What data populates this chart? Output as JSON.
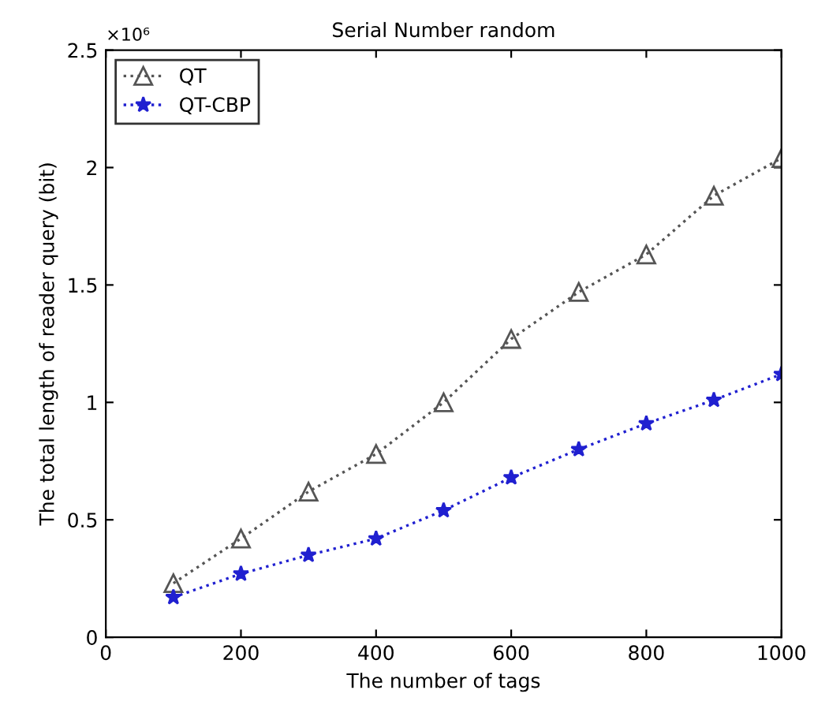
{
  "chart_data": {
    "type": "line",
    "title": "Serial Number random",
    "xlabel": "The number of tags",
    "ylabel": "The total length of reader query (bit)",
    "annotations": [
      "×10⁶"
    ],
    "x": [
      100,
      200,
      300,
      400,
      500,
      600,
      700,
      800,
      900,
      1000
    ],
    "series": [
      {
        "name": "QT",
        "color": "#555555",
        "marker": "triangle",
        "values": [
          0.23,
          0.42,
          0.62,
          0.78,
          1.0,
          1.27,
          1.47,
          1.63,
          1.88,
          2.04
        ]
      },
      {
        "name": "QT-CBP",
        "color": "#2020d0",
        "marker": "star",
        "values": [
          0.17,
          0.27,
          0.35,
          0.42,
          0.54,
          0.68,
          0.8,
          0.91,
          1.01,
          1.12
        ]
      }
    ],
    "line_style": "dotted",
    "xlim": [
      0,
      1000
    ],
    "xticks": [
      0,
      200,
      400,
      600,
      800,
      1000
    ],
    "ylim": [
      0,
      2.5
    ],
    "yticks": [
      0,
      0.5,
      1,
      1.5,
      2,
      2.5
    ],
    "grid": false,
    "legend": "top left"
  }
}
